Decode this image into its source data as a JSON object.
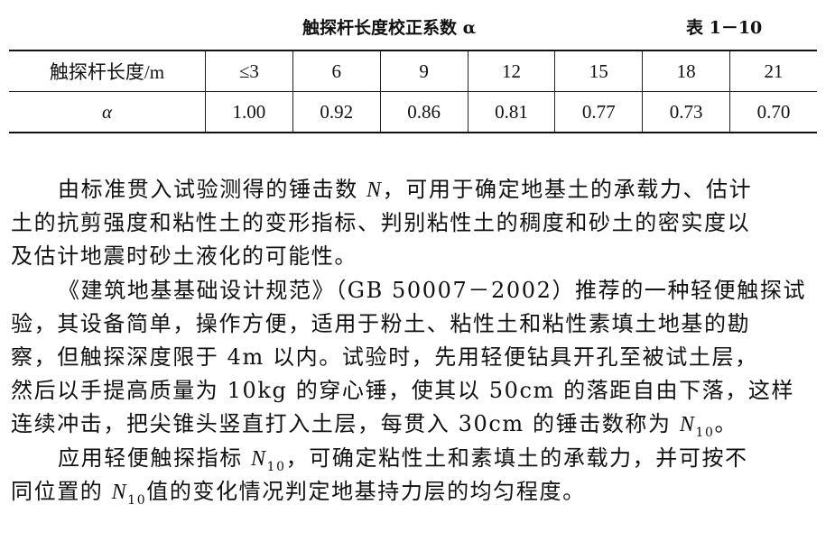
{
  "table": {
    "title": "触探杆长度校正系数 α",
    "number": "表 1－10",
    "header": [
      "触探杆长度/m",
      "≤3",
      "6",
      "9",
      "12",
      "15",
      "18",
      "21"
    ],
    "row": [
      "α",
      "1.00",
      "0.92",
      "0.86",
      "0.81",
      "0.77",
      "0.73",
      "0.70"
    ]
  },
  "body_lines": [
    {
      "indent": true,
      "segs": [
        {
          "t": "由标准贯入试验测得的锤击数 "
        },
        {
          "t": "N",
          "i": true
        },
        {
          "t": "，可用于确定地基土的承载力、估计"
        }
      ]
    },
    {
      "segs": [
        {
          "t": "土的抗剪强度和粘性土的变形指标、判别粘性土的稠度和砂土的密实度以"
        }
      ]
    },
    {
      "segs": [
        {
          "t": "及估计地震时砂土液化的可能性。"
        }
      ]
    },
    {
      "indent": true,
      "segs": [
        {
          "t": "《建筑地基基础设计规范》（GB 50007－2002）推荐的一种轻便触探试"
        }
      ]
    },
    {
      "segs": [
        {
          "t": "验，其设备简单，操作方便，适用于粉土、粘性土和粘性素填土地基的勘"
        }
      ]
    },
    {
      "segs": [
        {
          "t": "察，但触探深度限于 4m 以内。试验时，先用轻便钻具开孔至被试土层，"
        }
      ]
    },
    {
      "segs": [
        {
          "t": "然后以手提高质量为 10kg 的穿心锤，使其以 50cm 的落距自由下落，这样"
        }
      ]
    },
    {
      "segs": [
        {
          "t": "连续冲击，把尖锥头竖直打入土层，每贯入 30cm 的锤击数称为 "
        },
        {
          "t": "N",
          "i": true,
          "sub": "10"
        },
        {
          "t": "。"
        }
      ]
    },
    {
      "indent": true,
      "segs": [
        {
          "t": "应用轻便触探指标 "
        },
        {
          "t": "N",
          "i": true,
          "sub": "10"
        },
        {
          "t": "，可确定粘性土和素填土的承载力，并可按不"
        }
      ]
    },
    {
      "segs": [
        {
          "t": "同位置的 "
        },
        {
          "t": "N",
          "i": true,
          "sub": "10"
        },
        {
          "t": "值的变化情况判定地基持力层的均匀程度。"
        }
      ]
    }
  ]
}
